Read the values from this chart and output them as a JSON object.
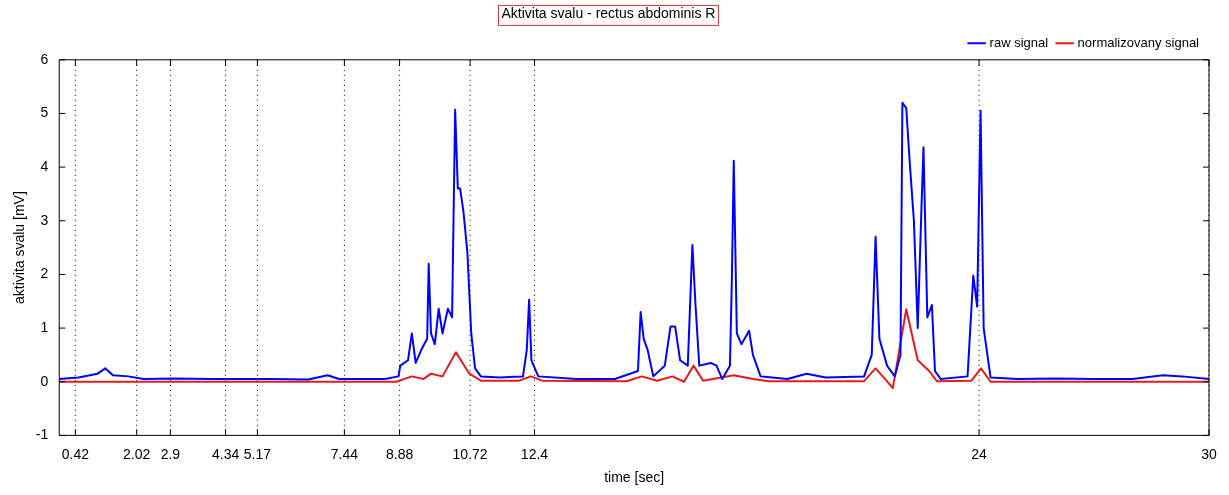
{
  "chart_data": {
    "type": "line",
    "title": "Aktivita svalu - rectus abdominis R",
    "xlabel": "time [sec]",
    "ylabel": "aktivita svalu [mV]",
    "xlim": [
      0,
      30
    ],
    "xticks": [
      0.42,
      2.02,
      2.9,
      4.34,
      5.17,
      7.44,
      8.88,
      10.72,
      12.4,
      24,
      30
    ],
    "ylim": [
      -1,
      6
    ],
    "yticks": [
      -1,
      0,
      1,
      2,
      3,
      4,
      5,
      6
    ],
    "grid": "x",
    "legend": "top right",
    "marker": "none",
    "line_style": "solid",
    "series": [
      {
        "name": "raw signal",
        "color": "#0000ff",
        "x": [
          0,
          0.5,
          1.0,
          1.2,
          1.4,
          1.8,
          2.2,
          3.0,
          4.0,
          5.5,
          6.5,
          7.0,
          7.3,
          8.5,
          8.85,
          8.9,
          9.1,
          9.2,
          9.3,
          9.45,
          9.6,
          9.64,
          9.7,
          9.8,
          9.9,
          10.0,
          10.14,
          10.25,
          10.33,
          10.4,
          10.46,
          10.55,
          10.65,
          10.75,
          10.85,
          11.0,
          11.5,
          12.1,
          12.2,
          12.26,
          12.32,
          12.5,
          13.5,
          14.5,
          15.1,
          15.17,
          15.25,
          15.35,
          15.5,
          15.8,
          15.95,
          16.07,
          16.2,
          16.4,
          16.52,
          16.6,
          16.7,
          17.0,
          17.15,
          17.3,
          17.5,
          17.55,
          17.6,
          17.68,
          17.8,
          18.0,
          18.1,
          18.3,
          19,
          19.5,
          20,
          21.0,
          21.2,
          21.3,
          21.4,
          21.6,
          21.8,
          21.95,
          22.0,
          22.1,
          22.2,
          22.3,
          22.4,
          22.5,
          22.55,
          22.65,
          22.77,
          22.85,
          23.0,
          23.7,
          23.85,
          23.95,
          24.04,
          24.12,
          24.3,
          25,
          26,
          27,
          28,
          28.8,
          29.3,
          30
        ],
        "values": [
          0.05,
          0.08,
          0.15,
          0.25,
          0.12,
          0.1,
          0.05,
          0.06,
          0.05,
          0.05,
          0.04,
          0.12,
          0.05,
          0.05,
          0.1,
          0.3,
          0.4,
          0.9,
          0.35,
          0.6,
          0.8,
          2.2,
          0.9,
          0.7,
          1.36,
          0.9,
          1.36,
          1.2,
          5.07,
          3.6,
          3.6,
          3.15,
          2.4,
          0.9,
          0.25,
          0.1,
          0.08,
          0.1,
          0.6,
          1.53,
          0.4,
          0.1,
          0.05,
          0.05,
          0.2,
          1.3,
          0.8,
          0.6,
          0.1,
          0.3,
          1.03,
          1.03,
          0.4,
          0.3,
          2.55,
          1.45,
          0.3,
          0.35,
          0.3,
          0.05,
          0.3,
          1.9,
          4.12,
          0.9,
          0.7,
          0.95,
          0.5,
          0.1,
          0.05,
          0.15,
          0.08,
          0.1,
          0.5,
          2.7,
          0.8,
          0.3,
          0.1,
          0.5,
          5.2,
          5.1,
          4.0,
          3.0,
          1.0,
          3.3,
          4.37,
          1.2,
          1.43,
          0.2,
          0.05,
          0.1,
          1.98,
          1.4,
          5.05,
          1.0,
          0.08,
          0.05,
          0.06,
          0.05,
          0.05,
          0.12,
          0.1,
          0.05
        ]
      },
      {
        "name": "normalizovany signal",
        "color": "#e41a1c",
        "x": [
          0,
          8.8,
          9.2,
          9.5,
          9.7,
          10.0,
          10.35,
          10.7,
          11,
          12.0,
          12.3,
          12.6,
          14.8,
          15.2,
          15.6,
          16.0,
          16.3,
          16.55,
          16.8,
          17.6,
          18.1,
          18.5,
          21.0,
          21.3,
          21.55,
          21.75,
          22.1,
          22.4,
          22.7,
          22.9,
          23.8,
          24.05,
          24.3,
          30
        ],
        "values": [
          0,
          0,
          0.1,
          0.05,
          0.15,
          0.1,
          0.55,
          0.15,
          0.02,
          0.02,
          0.1,
          0.02,
          0.01,
          0.1,
          0.02,
          0.1,
          0.0,
          0.3,
          0.02,
          0.12,
          0.05,
          0.01,
          0.01,
          0.25,
          0.05,
          -0.12,
          1.35,
          0.4,
          0.2,
          0.01,
          0.02,
          0.25,
          0.0,
          0
        ]
      }
    ]
  }
}
